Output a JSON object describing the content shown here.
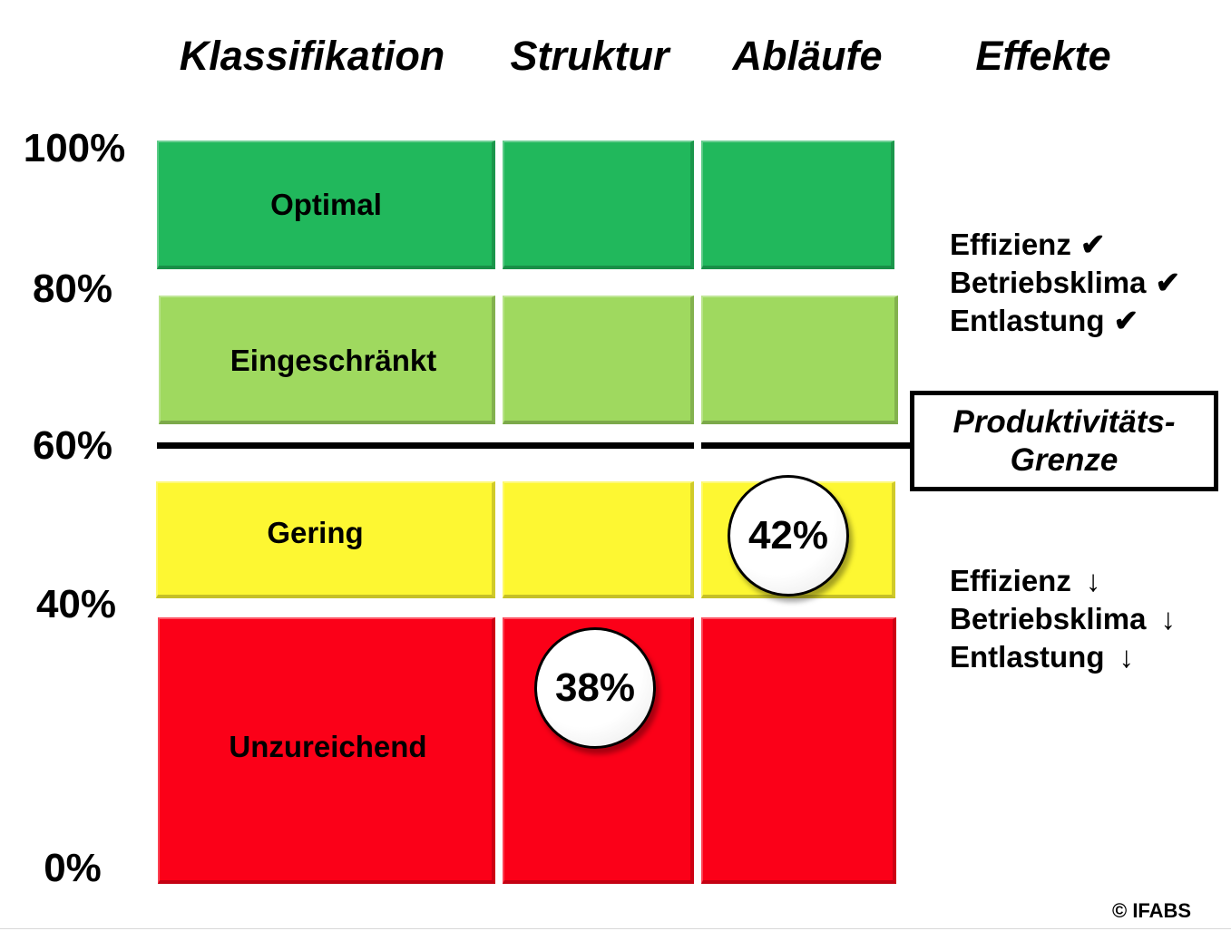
{
  "columns": {
    "klassifikation": "Klassifikation",
    "struktur": "Struktur",
    "ablaeufe": "Abläufe",
    "effekte": "Effekte"
  },
  "y_axis": [
    "100%",
    "80%",
    "60%",
    "40%",
    "0%"
  ],
  "levels": [
    {
      "label": "Optimal",
      "color": "#21b85c"
    },
    {
      "label": "Eingeschränkt",
      "color": "#9fd95f"
    },
    {
      "label": "Gering",
      "color": "#fdf732"
    },
    {
      "label": "Unzureichend",
      "color": "#fb0018"
    }
  ],
  "productivity_limit": {
    "line1": "Produktivitäts-",
    "line2": "Grenze",
    "level": "60%"
  },
  "results": {
    "struktur": "38%",
    "ablaeufe": "42%"
  },
  "effects_above": [
    {
      "text": "Effizienz",
      "mark": "✔"
    },
    {
      "text": "Betriebsklima",
      "mark": "✔"
    },
    {
      "text": "Entlastung",
      "mark": "✔"
    }
  ],
  "effects_below": [
    {
      "text": "Effizienz",
      "mark": "↓"
    },
    {
      "text": "Betriebsklima",
      "mark": "↓"
    },
    {
      "text": "Entlastung",
      "mark": "↓"
    }
  ],
  "copyright": "© IFABS"
}
